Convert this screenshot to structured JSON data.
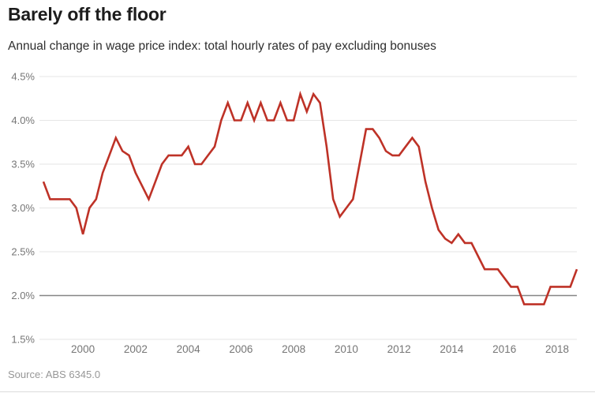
{
  "header": {
    "title": "Barely off the floor",
    "subtitle": "Annual change in wage price index: total hourly rates of pay excluding bonuses"
  },
  "footer": {
    "source": "Source: ABS 6345.0"
  },
  "colors": {
    "line": "#be3227",
    "grid": "#e6e6e6",
    "emphasis_grid": "#868686",
    "axis_text": "#767676",
    "title_text": "#1c1c1c",
    "subtitle_text": "#2e2e2e",
    "source_text": "#979797"
  },
  "chart_data": {
    "type": "line",
    "title": "Barely off the floor",
    "subtitle": "Annual change in wage price index: total hourly rates of pay excluding bonuses",
    "source": "Source: ABS 6345.0",
    "xlabel": "",
    "ylabel": "",
    "xlim": [
      1998.35,
      2018.75
    ],
    "ylim": [
      1.5,
      4.5
    ],
    "grid": true,
    "legend": "none",
    "emphasized_gridline": 2.0,
    "yticks": {
      "values": [
        4.5,
        4.0,
        3.5,
        3.0,
        2.5,
        2.0,
        1.5
      ],
      "labels": [
        "4.5%",
        "4.0%",
        "3.5%",
        "3.0%",
        "2.5%",
        "2.0%",
        "1.5%"
      ]
    },
    "xticks": {
      "values": [
        2000,
        2002,
        2004,
        2006,
        2008,
        2010,
        2012,
        2014,
        2016,
        2018
      ],
      "labels": [
        "2000",
        "2002",
        "2004",
        "2006",
        "2008",
        "2010",
        "2012",
        "2014",
        "2016",
        "2018"
      ]
    },
    "series": [
      {
        "name": "Annual change in wage price index (%), quarterly",
        "color": "#be3227",
        "points": [
          [
            1998.5,
            3.3
          ],
          [
            1998.75,
            3.1
          ],
          [
            1999.0,
            3.1
          ],
          [
            1999.25,
            3.1
          ],
          [
            1999.5,
            3.1
          ],
          [
            1999.75,
            3.0
          ],
          [
            2000.0,
            2.7
          ],
          [
            2000.25,
            3.0
          ],
          [
            2000.5,
            3.1
          ],
          [
            2000.75,
            3.4
          ],
          [
            2001.0,
            3.6
          ],
          [
            2001.25,
            3.8
          ],
          [
            2001.5,
            3.65
          ],
          [
            2001.75,
            3.6
          ],
          [
            2002.0,
            3.4
          ],
          [
            2002.25,
            3.25
          ],
          [
            2002.5,
            3.1
          ],
          [
            2002.75,
            3.3
          ],
          [
            2003.0,
            3.5
          ],
          [
            2003.25,
            3.6
          ],
          [
            2003.5,
            3.6
          ],
          [
            2003.75,
            3.6
          ],
          [
            2004.0,
            3.7
          ],
          [
            2004.25,
            3.5
          ],
          [
            2004.5,
            3.5
          ],
          [
            2004.75,
            3.6
          ],
          [
            2005.0,
            3.7
          ],
          [
            2005.25,
            4.0
          ],
          [
            2005.5,
            4.2
          ],
          [
            2005.75,
            4.0
          ],
          [
            2006.0,
            4.0
          ],
          [
            2006.25,
            4.2
          ],
          [
            2006.5,
            4.0
          ],
          [
            2006.75,
            4.2
          ],
          [
            2007.0,
            4.0
          ],
          [
            2007.25,
            4.0
          ],
          [
            2007.5,
            4.2
          ],
          [
            2007.75,
            4.0
          ],
          [
            2008.0,
            4.0
          ],
          [
            2008.25,
            4.3
          ],
          [
            2008.5,
            4.1
          ],
          [
            2008.75,
            4.3
          ],
          [
            2009.0,
            4.2
          ],
          [
            2009.25,
            3.7
          ],
          [
            2009.5,
            3.1
          ],
          [
            2009.75,
            2.9
          ],
          [
            2010.0,
            3.0
          ],
          [
            2010.25,
            3.1
          ],
          [
            2010.5,
            3.5
          ],
          [
            2010.75,
            3.9
          ],
          [
            2011.0,
            3.9
          ],
          [
            2011.25,
            3.8
          ],
          [
            2011.5,
            3.65
          ],
          [
            2011.75,
            3.6
          ],
          [
            2012.0,
            3.6
          ],
          [
            2012.25,
            3.7
          ],
          [
            2012.5,
            3.8
          ],
          [
            2012.75,
            3.7
          ],
          [
            2013.0,
            3.3
          ],
          [
            2013.25,
            3.0
          ],
          [
            2013.5,
            2.75
          ],
          [
            2013.75,
            2.65
          ],
          [
            2014.0,
            2.6
          ],
          [
            2014.25,
            2.7
          ],
          [
            2014.5,
            2.6
          ],
          [
            2014.75,
            2.6
          ],
          [
            2015.0,
            2.45
          ],
          [
            2015.25,
            2.3
          ],
          [
            2015.5,
            2.3
          ],
          [
            2015.75,
            2.3
          ],
          [
            2016.0,
            2.2
          ],
          [
            2016.25,
            2.1
          ],
          [
            2016.5,
            2.1
          ],
          [
            2016.75,
            1.9
          ],
          [
            2017.0,
            1.9
          ],
          [
            2017.25,
            1.9
          ],
          [
            2017.5,
            1.9
          ],
          [
            2017.75,
            2.1
          ],
          [
            2018.0,
            2.1
          ],
          [
            2018.25,
            2.1
          ],
          [
            2018.5,
            2.1
          ],
          [
            2018.75,
            2.3
          ]
        ]
      }
    ]
  }
}
